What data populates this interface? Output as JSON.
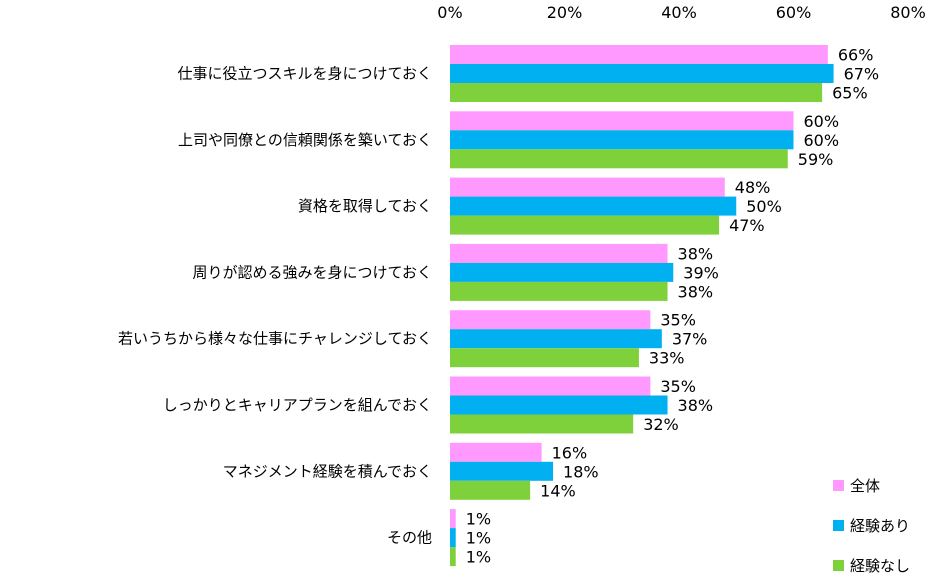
{
  "chart_data": {
    "type": "bar",
    "orientation": "horizontal",
    "xlim": [
      0,
      80
    ],
    "ticks": [
      "0%",
      "20%",
      "40%",
      "60%",
      "80%"
    ],
    "tick_values": [
      0,
      20,
      40,
      60,
      80
    ],
    "grid": false,
    "legend_position": "bottom-right",
    "categories": [
      "仕事に役立つスキルを身につけておく",
      "上司や同僚との信頼関係を築いておく",
      "資格を取得しておく",
      "周りが認める強みを身につけておく",
      "若いうちから様々な仕事にチャレンジしておく",
      "しっかりとキャリアプランを組んでおく",
      "マネジメント経験を積んでおく",
      "その他"
    ],
    "series": [
      {
        "name": "全体",
        "color": "#ff99ff",
        "values": [
          66,
          60,
          48,
          38,
          35,
          35,
          16,
          1
        ],
        "labels": [
          "66%",
          "60%",
          "48%",
          "38%",
          "35%",
          "35%",
          "16%",
          "1%"
        ]
      },
      {
        "name": "経験あり",
        "color": "#00b0f0",
        "values": [
          67,
          60,
          50,
          39,
          37,
          38,
          18,
          1
        ],
        "labels": [
          "67%",
          "60%",
          "50%",
          "39%",
          "37%",
          "38%",
          "18%",
          "1%"
        ]
      },
      {
        "name": "経験なし",
        "color": "#7fd13b",
        "values": [
          65,
          59,
          47,
          38,
          33,
          32,
          14,
          1
        ],
        "labels": [
          "65%",
          "59%",
          "47%",
          "38%",
          "33%",
          "32%",
          "14%",
          "1%"
        ]
      }
    ]
  }
}
